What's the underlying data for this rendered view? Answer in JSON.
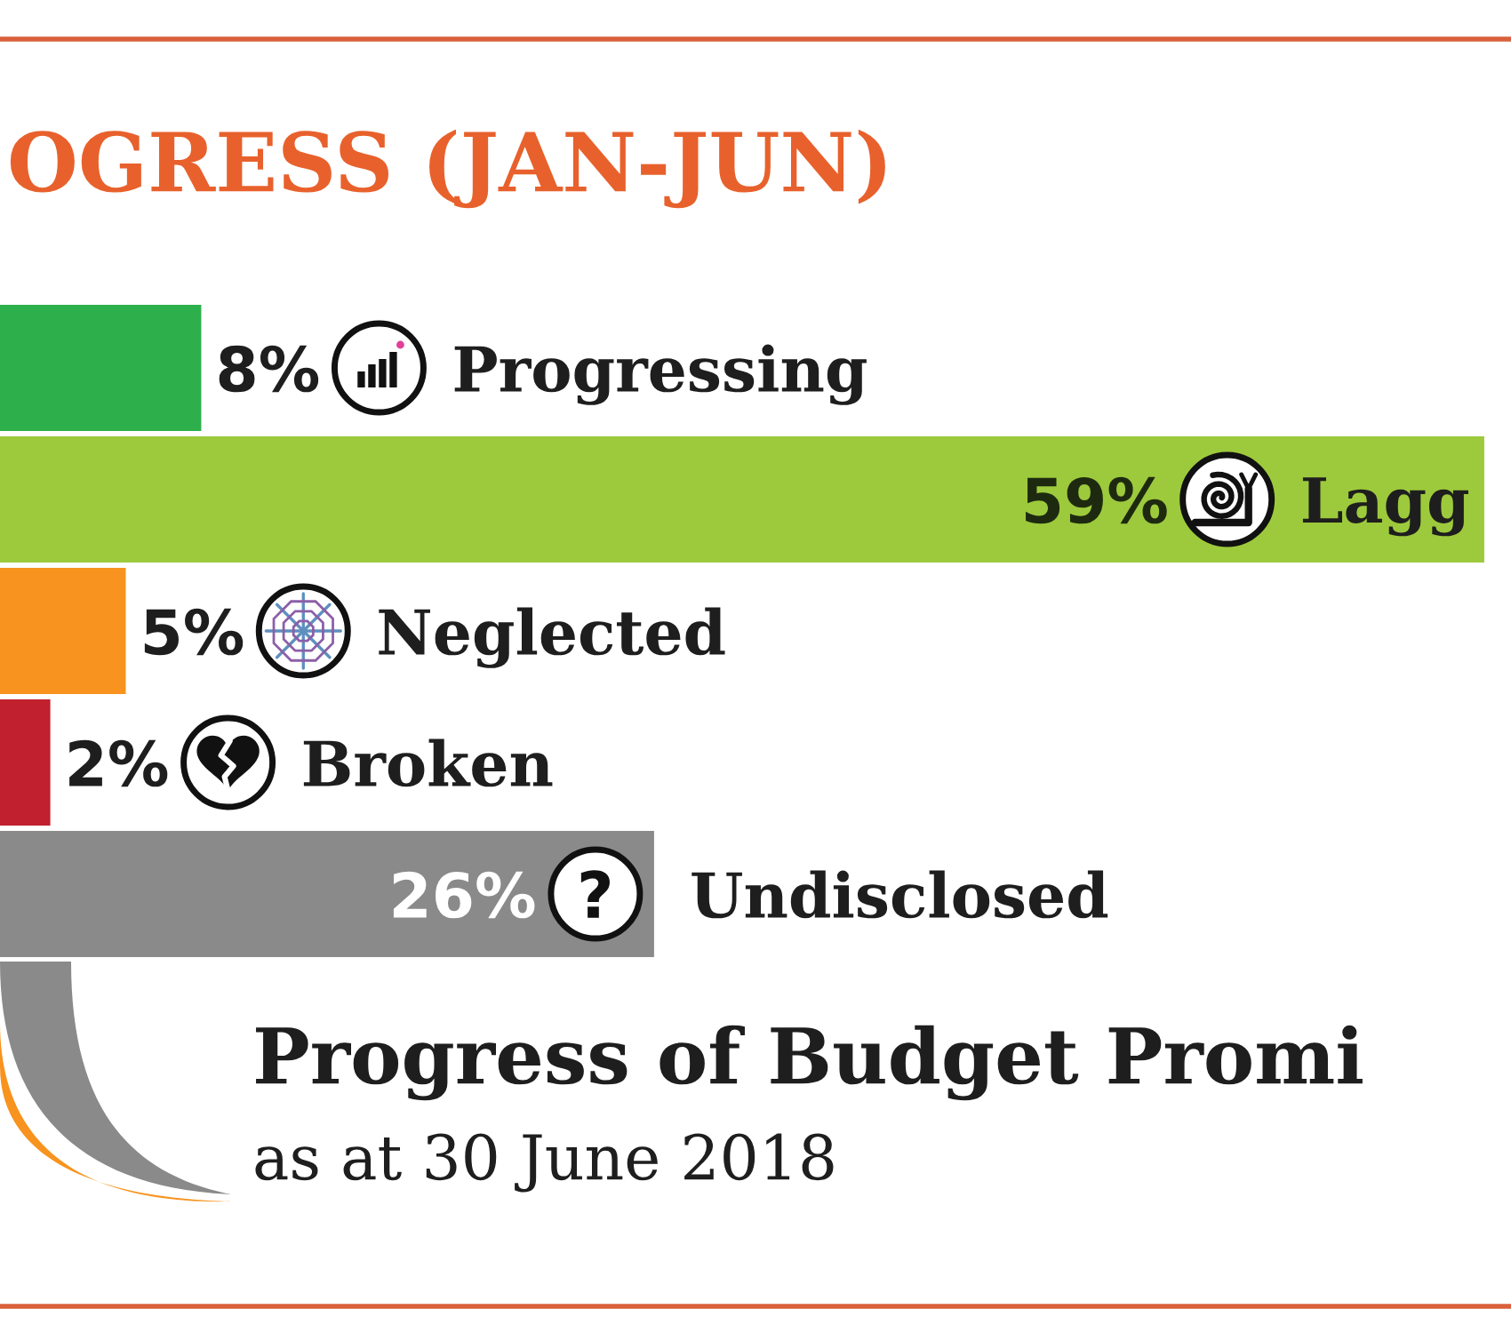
{
  "chart_data": {
    "type": "bar",
    "orientation": "horizontal",
    "title": "OGRESS (JAN-JUN)",
    "categories": [
      "Progressing",
      "Lagg",
      "Neglected",
      "Broken",
      "Undisclosed"
    ],
    "values": [
      8,
      59,
      5,
      2,
      26
    ],
    "colors": [
      "#2db04b",
      "#9dca3c",
      "#f7931e",
      "#c1202e",
      "#8a8a8a"
    ],
    "value_labels": [
      "8%",
      "59%",
      "5%",
      "2%",
      "26%"
    ],
    "tick_labels": false,
    "annotations": [
      "Progress of Budget Promi",
      "as at 30 June 2018"
    ]
  }
}
